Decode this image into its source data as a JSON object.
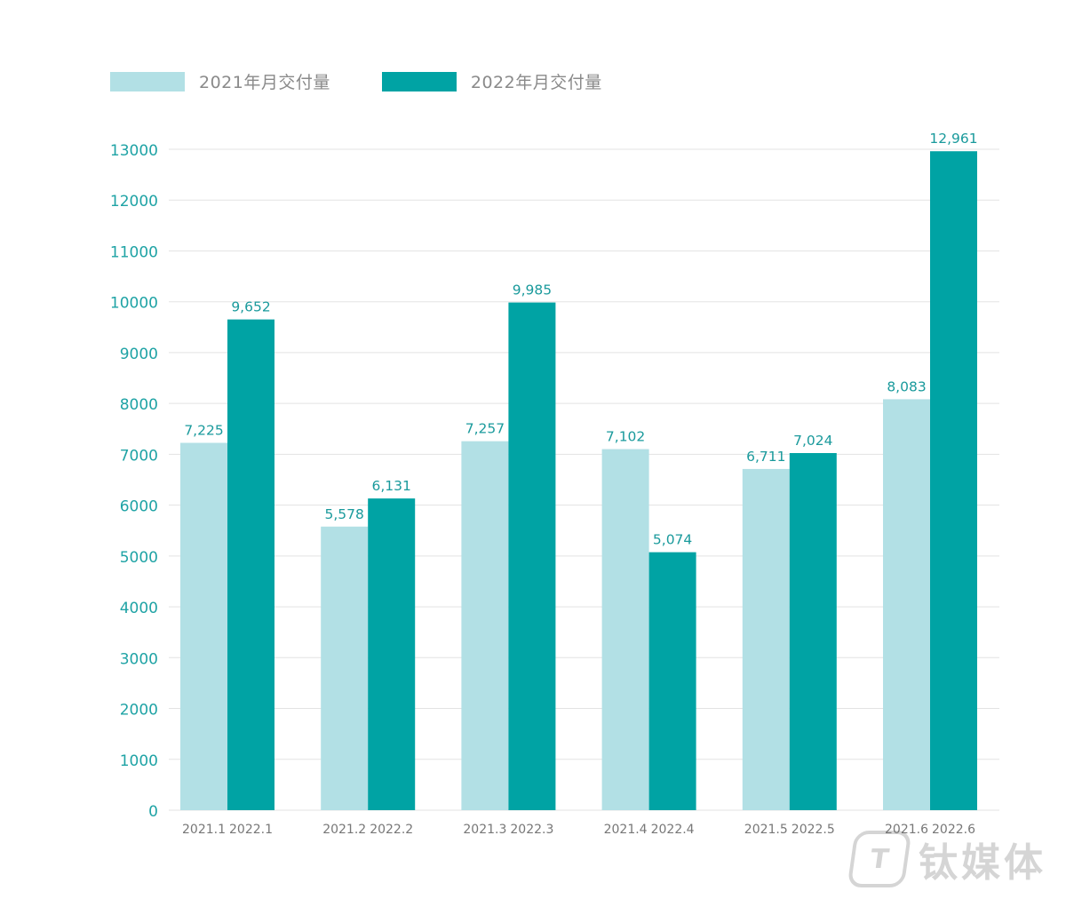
{
  "chart_data": {
    "type": "bar",
    "categories": [
      "1",
      "2",
      "3",
      "4",
      "5",
      "6"
    ],
    "series": [
      {
        "name": "2021年月交付量",
        "color": "#b2e0e5",
        "x_labels": [
          "2021.1",
          "2021.2",
          "2021.3",
          "2021.4",
          "2021.5",
          "2021.6"
        ],
        "values": [
          7225,
          5578,
          7257,
          7102,
          6711,
          8083
        ],
        "data_labels": [
          "7,225",
          "5,578",
          "7,257",
          "7,102",
          "6,711",
          "8,083"
        ]
      },
      {
        "name": "2022年月交付量",
        "color": "#00a3a4",
        "x_labels": [
          "2022.1",
          "2022.2",
          "2022.3",
          "2022.4",
          "2022.5",
          "2022.6"
        ],
        "values": [
          9652,
          6131,
          9985,
          5074,
          7024,
          12961
        ],
        "data_labels": [
          "9,652",
          "6,131",
          "9,985",
          "5,074",
          "7,024",
          "12,961"
        ]
      }
    ],
    "yticks": [
      "0",
      "1000",
      "2000",
      "3000",
      "4000",
      "5000",
      "6000",
      "7000",
      "8000",
      "9000",
      "10000",
      "11000",
      "12000",
      "13000"
    ],
    "ylim": [
      0,
      13000
    ],
    "grid": true,
    "legend": "top-left",
    "title": "",
    "xlabel": "",
    "ylabel": ""
  },
  "colors": {
    "axis_tick_text": "#1fa3a5",
    "x_tick_text": "#777777",
    "data_label_text": "#1a9a9c",
    "grid": "#e3e3e3"
  },
  "watermark": {
    "logo_text": "T",
    "text": "钛媒体"
  }
}
